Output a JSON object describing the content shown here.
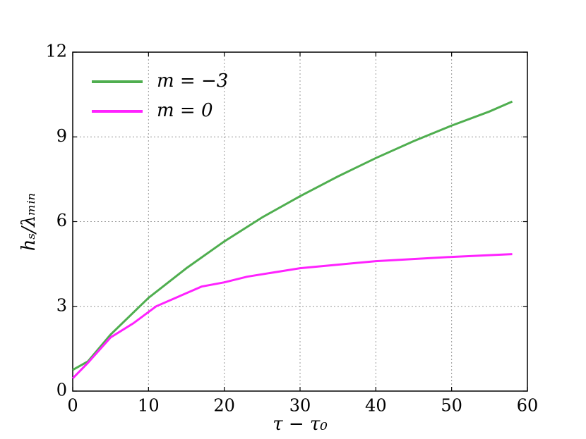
{
  "chart_data": {
    "type": "line",
    "x_label": "τ − τ₀",
    "y_label": "hₛ/λₘᵢₙ",
    "xlim": [
      0,
      60
    ],
    "ylim": [
      0,
      12
    ],
    "xticks": [
      0,
      10,
      20,
      30,
      40,
      50,
      60
    ],
    "yticks": [
      0,
      3,
      6,
      9,
      12
    ],
    "grid": true,
    "legend": "upper left",
    "series": [
      {
        "name": "m = −3",
        "color": "#4fae4f",
        "x": [
          0,
          2,
          5,
          10,
          15,
          20,
          25,
          30,
          35,
          40,
          45,
          50,
          55,
          58
        ],
        "values": [
          0.75,
          1.05,
          2.0,
          3.3,
          4.35,
          5.3,
          6.15,
          6.9,
          7.6,
          8.25,
          8.85,
          9.4,
          9.9,
          10.25
        ]
      },
      {
        "name": "m = 0",
        "color": "#ff22ff",
        "x": [
          0,
          2,
          5,
          8,
          11,
          14,
          17,
          20,
          23,
          30,
          40,
          50,
          58
        ],
        "values": [
          0.45,
          1.0,
          1.9,
          2.4,
          3.0,
          3.35,
          3.7,
          3.85,
          4.05,
          4.35,
          4.6,
          4.75,
          4.85
        ]
      }
    ]
  }
}
